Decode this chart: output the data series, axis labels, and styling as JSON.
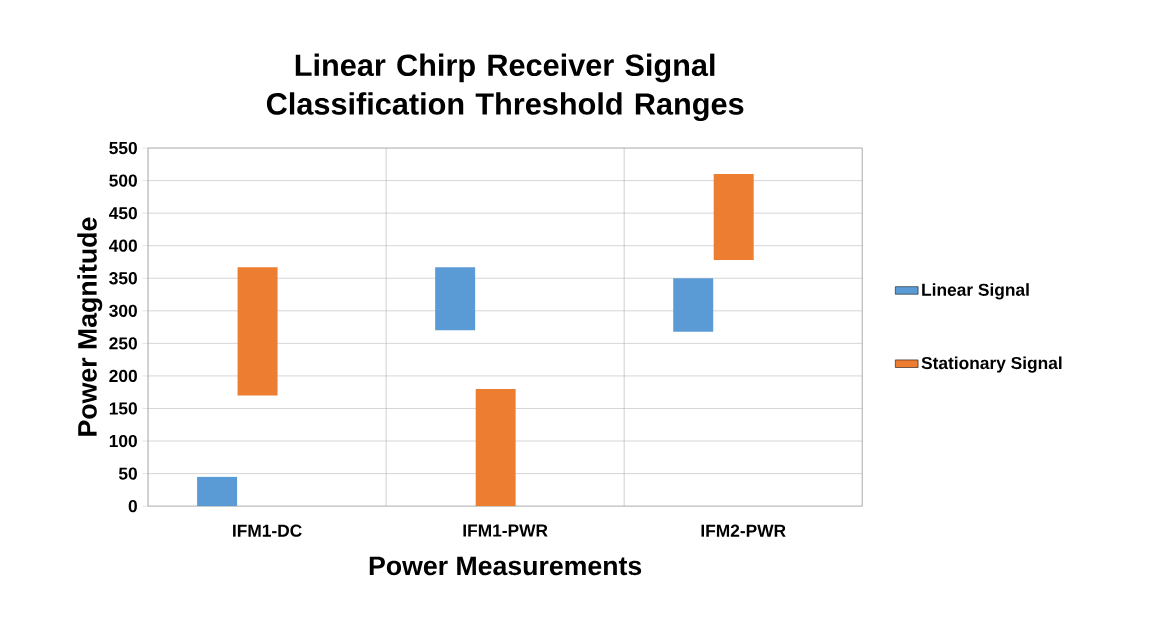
{
  "chart_data": {
    "type": "bar",
    "title": "Linear Chirp Receiver Signal Classification Threshold Ranges",
    "xlabel": "Power Measurements",
    "ylabel": "Power Magnitude",
    "categories": [
      "IFM1-DC",
      "IFM1-PWR",
      "IFM2-PWR"
    ],
    "series": [
      {
        "name": "Linear Signal",
        "color": "#5b9bd5",
        "base": [
          0,
          270,
          268
        ],
        "values": [
          45,
          97,
          82
        ]
      },
      {
        "name": "Stationary Signal",
        "color": "#ed7d31",
        "base": [
          170,
          0,
          378
        ],
        "values": [
          197,
          180,
          132
        ]
      }
    ],
    "ylim": [
      0,
      550
    ],
    "yticks": [
      0,
      50,
      100,
      150,
      200,
      250,
      300,
      350,
      400,
      450,
      500,
      550
    ],
    "grid": true,
    "legend": "right"
  }
}
